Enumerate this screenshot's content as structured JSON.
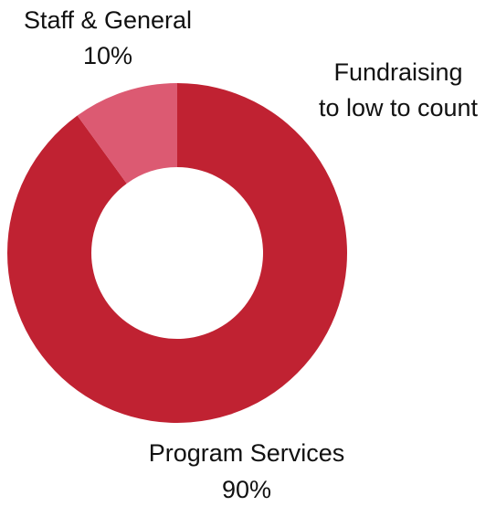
{
  "chart_data": {
    "type": "pie",
    "variant": "donut",
    "slices": [
      {
        "name": "Program Services",
        "label": "Program Services",
        "value_label": "90%",
        "value": 90,
        "color": "#c02232"
      },
      {
        "name": "Staff & General",
        "label": "Staff & General",
        "value_label": "10%",
        "value": 10,
        "color": "#dc5a72"
      },
      {
        "name": "Fundraising",
        "label": "Fundraising",
        "value_label": "to low to count",
        "value": 0,
        "color": "#ffffff"
      }
    ],
    "start_angle_deg": 0,
    "direction": "clockwise",
    "legend": "none"
  }
}
